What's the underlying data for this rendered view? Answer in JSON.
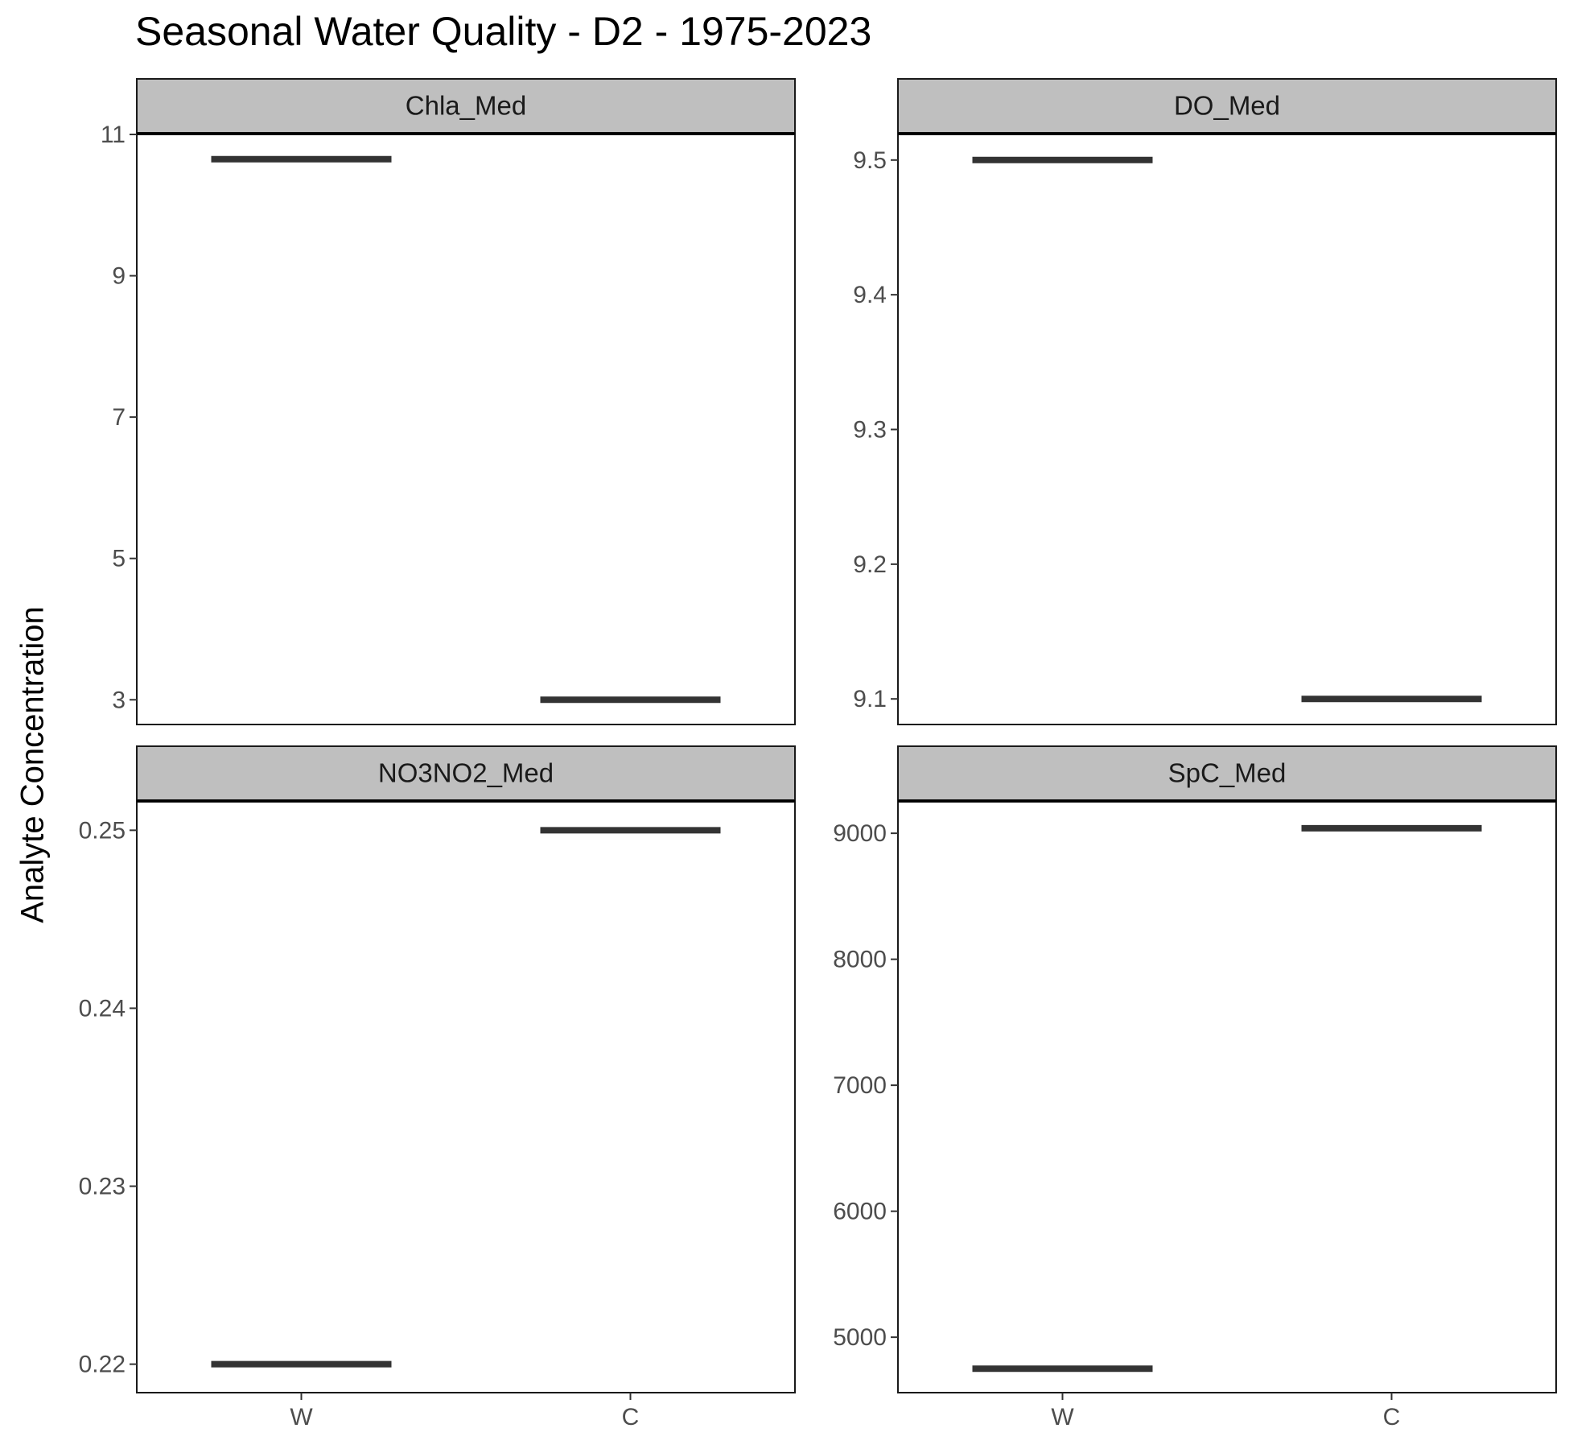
{
  "chart_data": {
    "type": "bar",
    "title": "Seasonal Water Quality - D2 - 1975-2023",
    "ylabel": "Analyte Concentration",
    "xlabel": "",
    "categories": [
      "W",
      "C"
    ],
    "grid": false,
    "facet_scales": "free_y",
    "marks": "horizontal crossbar per category",
    "panels": [
      {
        "name": "Chla_Med",
        "values": [
          10.65,
          3.0
        ],
        "ylim": [
          2.65,
          11.0
        ],
        "yticks": [
          "3",
          "5",
          "7",
          "9",
          "11"
        ],
        "ytick_values": [
          3,
          5,
          7,
          9,
          11
        ]
      },
      {
        "name": "DO_Med",
        "values": [
          9.5,
          9.1
        ],
        "ylim": [
          9.081,
          9.519
        ],
        "yticks": [
          "9.1",
          "9.2",
          "9.3",
          "9.4",
          "9.5"
        ],
        "ytick_values": [
          9.1,
          9.2,
          9.3,
          9.4,
          9.5
        ]
      },
      {
        "name": "NO3NO2_Med",
        "values": [
          0.22,
          0.25
        ],
        "ylim": [
          0.2184,
          0.2516
        ],
        "yticks": [
          "0.22",
          "0.23",
          "0.24",
          "0.25"
        ],
        "ytick_values": [
          0.22,
          0.23,
          0.24,
          0.25
        ]
      },
      {
        "name": "SpC_Med",
        "values": [
          4750,
          9040
        ],
        "ylim": [
          4560,
          9250
        ],
        "yticks": [
          "5000",
          "6000",
          "7000",
          "8000",
          "9000"
        ],
        "ytick_values": [
          5000,
          6000,
          7000,
          8000,
          9000
        ]
      }
    ],
    "colors": {
      "bar": "#333333",
      "strip": "#bfbfbf",
      "tick": "#4d4d4d"
    }
  }
}
